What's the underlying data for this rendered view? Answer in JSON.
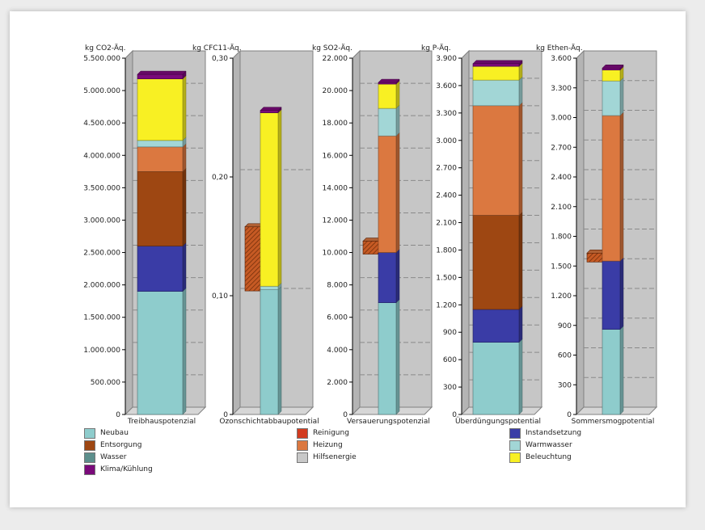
{
  "colors": {
    "Neubau": "#8ecccc",
    "Instandsetzung": "#3a3ca6",
    "Entsorgung": "#9e4712",
    "Heizung": "#db7840",
    "Warmwasser": "#a2d6d6",
    "Beleuchtung": "#f8f023",
    "Klima/Kühlung": "#7a0a7a",
    "Reinigung": "#d23b1f",
    "Wasser": "#5c8f8c",
    "Hilfsenergie": "#c8c8c8"
  },
  "legend": {
    "items": [
      {
        "label": "Neubau",
        "color": "#8ecccc"
      },
      {
        "label": "Reinigung",
        "color": "#d23b1f"
      },
      {
        "label": "Instandsetzung",
        "color": "#3a3ca6"
      },
      {
        "label": "Entsorgung",
        "color": "#9e4712"
      },
      {
        "label": "Heizung",
        "color": "#db7840"
      },
      {
        "label": "Warmwasser",
        "color": "#a2d6d6"
      },
      {
        "label": "Wasser",
        "color": "#5c8f8c"
      },
      {
        "label": "Hilfsenergie",
        "color": "#c8c8c8"
      },
      {
        "label": "Beleuchtung",
        "color": "#f8f023"
      },
      {
        "label": "Klima/Kühlung",
        "color": "#7a0a7a"
      }
    ]
  },
  "chart_data": [
    {
      "type": "bar",
      "title": "Treibhauspotenzial",
      "ylabel": "kg CO2-Äq.",
      "ylim": [
        0,
        5500000
      ],
      "yticks": [
        0,
        500000,
        1000000,
        1500000,
        2000000,
        2500000,
        3000000,
        3500000,
        4000000,
        4500000,
        5000000,
        5500000
      ],
      "ytick_labels": [
        "0",
        "500.000",
        "1.000.000",
        "1.500.000",
        "2.000.000",
        "2.500.000",
        "3.000.000",
        "3.500.000",
        "4.000.000",
        "4.500.000",
        "5.000.000",
        "5.500.000"
      ],
      "series": [
        {
          "name": "Neubau",
          "values": [
            1900000
          ]
        },
        {
          "name": "Instandsetzung",
          "values": [
            700000
          ]
        },
        {
          "name": "Entsorgung",
          "values": [
            1150000
          ]
        },
        {
          "name": "Heizung",
          "values": [
            380000
          ]
        },
        {
          "name": "Warmwasser",
          "values": [
            100000
          ]
        },
        {
          "name": "Beleuchtung",
          "values": [
            950000
          ]
        },
        {
          "name": "Klima/Kühlung",
          "values": [
            70000
          ]
        }
      ],
      "offset_bar": null
    },
    {
      "type": "bar",
      "title": "Ozonschichtabbaupotential",
      "ylabel": "kg CFC11-Äq.",
      "ylim": [
        0,
        0.3
      ],
      "yticks": [
        0,
        0.1,
        0.2,
        0.3
      ],
      "ytick_labels": [
        "0",
        "0,10",
        "0,20",
        "0,30"
      ],
      "series": [
        {
          "name": "Neubau",
          "values": [
            0.105
          ]
        },
        {
          "name": "Warmwasser",
          "values": [
            0.003
          ]
        },
        {
          "name": "Beleuchtung",
          "values": [
            0.146
          ]
        },
        {
          "name": "Klima/Kühlung",
          "values": [
            0.002
          ]
        }
      ],
      "offset_bar": {
        "name": "Heizung",
        "from": 0.104,
        "to": 0.158
      }
    },
    {
      "type": "bar",
      "title": "Versauerungspotenzial",
      "ylabel": "kg SO2-Äq.",
      "ylim": [
        0,
        22000
      ],
      "yticks": [
        0,
        2000,
        4000,
        6000,
        8000,
        10000,
        12000,
        14000,
        16000,
        18000,
        20000,
        22000
      ],
      "ytick_labels": [
        "0",
        "2.000",
        "4.000",
        "6.000",
        "8.000",
        "10.000",
        "12.000",
        "14.000",
        "16.000",
        "18.000",
        "20.000",
        "22.000"
      ],
      "series": [
        {
          "name": "Neubau",
          "values": [
            6900
          ]
        },
        {
          "name": "Instandsetzung",
          "values": [
            3100
          ]
        },
        {
          "name": "Heizung",
          "values": [
            7200
          ]
        },
        {
          "name": "Warmwasser",
          "values": [
            1700
          ]
        },
        {
          "name": "Beleuchtung",
          "values": [
            1500
          ]
        },
        {
          "name": "Klima/Kühlung",
          "values": [
            100
          ]
        }
      ],
      "offset_bar": {
        "name": "Heizung",
        "from": 9900,
        "to": 10700
      }
    },
    {
      "type": "bar",
      "title": "Überdüngungspotential",
      "ylabel": "kg P-Äq.",
      "ylim": [
        0,
        3900
      ],
      "yticks": [
        0,
        300,
        600,
        900,
        1200,
        1500,
        1800,
        2100,
        2400,
        2700,
        3000,
        3300,
        3600,
        3900
      ],
      "ytick_labels": [
        "0",
        "300",
        "600",
        "900",
        "1.200",
        "1.500",
        "1.800",
        "2.100",
        "2.400",
        "2.700",
        "3.000",
        "3.300",
        "3.600",
        "3.900"
      ],
      "series": [
        {
          "name": "Neubau",
          "values": [
            790
          ]
        },
        {
          "name": "Instandsetzung",
          "values": [
            360
          ]
        },
        {
          "name": "Entsorgung",
          "values": [
            1030
          ]
        },
        {
          "name": "Heizung",
          "values": [
            1200
          ]
        },
        {
          "name": "Warmwasser",
          "values": [
            280
          ]
        },
        {
          "name": "Beleuchtung",
          "values": [
            150
          ]
        },
        {
          "name": "Klima/Kühlung",
          "values": [
            30
          ]
        }
      ],
      "offset_bar": null
    },
    {
      "type": "bar",
      "title": "Sommersmogpotential",
      "ylabel": "kg Ethen-Äq.",
      "ylim": [
        0,
        3600
      ],
      "yticks": [
        0,
        300,
        600,
        900,
        1200,
        1500,
        1800,
        2100,
        2400,
        2700,
        3000,
        3300,
        3600
      ],
      "ytick_labels": [
        "0",
        "300",
        "600",
        "900",
        "1.200",
        "1.500",
        "1.800",
        "2.100",
        "2.400",
        "2.700",
        "3.000",
        "3.300",
        "3.600"
      ],
      "series": [
        {
          "name": "Neubau",
          "values": [
            860
          ]
        },
        {
          "name": "Instandsetzung",
          "values": [
            690
          ]
        },
        {
          "name": "Heizung",
          "values": [
            1470
          ]
        },
        {
          "name": "Warmwasser",
          "values": [
            350
          ]
        },
        {
          "name": "Beleuchtung",
          "values": [
            110
          ]
        },
        {
          "name": "Klima/Kühlung",
          "values": [
            20
          ]
        }
      ],
      "offset_bar": {
        "name": "Heizung",
        "from": 1540,
        "to": 1630
      }
    }
  ]
}
